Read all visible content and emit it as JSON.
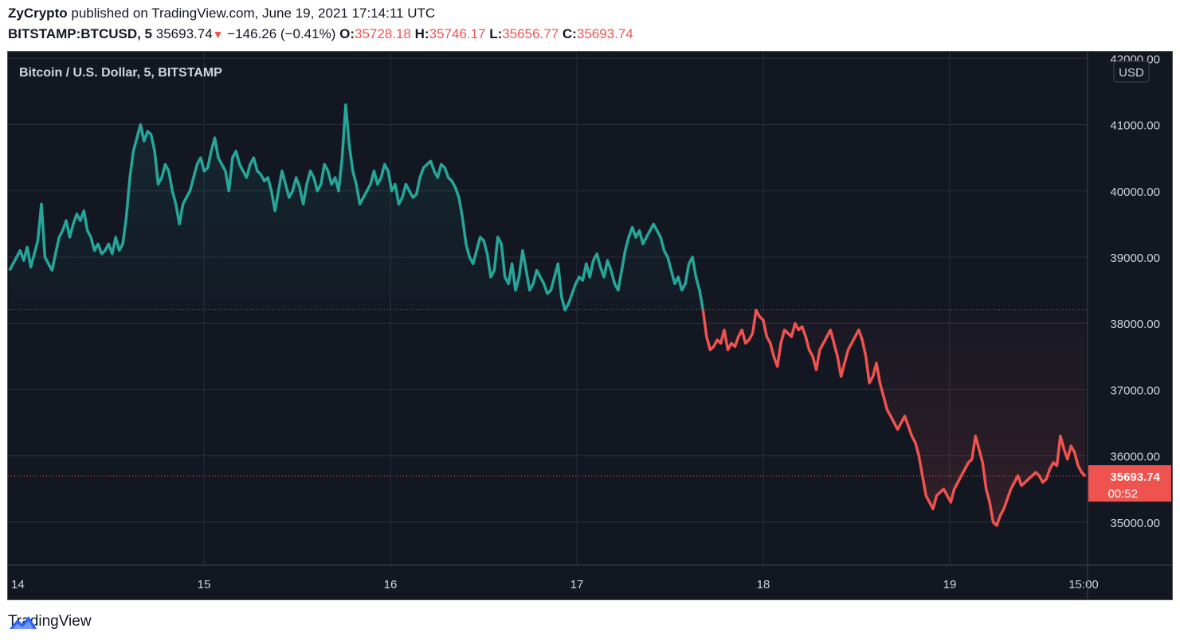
{
  "header": {
    "author": "ZyCrypto",
    "published_text": "published on TradingView.com, June 19, 2021 17:14:11 UTC",
    "symbol": "BITSTAMP:BTCUSD, 5",
    "last_price": "35693.74",
    "change": "−146.26 (−0.41%)",
    "open_label": "O:",
    "open": "35728.18",
    "high_label": "H:",
    "high": "35746.17",
    "low_label": "L:",
    "low": "35656.77",
    "close_label": "C:",
    "close": "35693.74"
  },
  "chart_data": {
    "type": "line",
    "title": "Bitcoin / U.S. Dollar, 5, BITSTAMP",
    "currency_label": "USD",
    "x_tick_labels": [
      "14",
      "15",
      "16",
      "17",
      "18",
      "19",
      "15:00"
    ],
    "y_tick_labels": [
      "42000.00",
      "41000.00",
      "40000.00",
      "39000.00",
      "38000.00",
      "37000.00",
      "36000.00",
      "35000.00"
    ],
    "ylim": [
      34350,
      42100
    ],
    "baseline": 38210,
    "last_price_label": "35693.74",
    "countdown_label": "00:52",
    "colors": {
      "up": "#26a69a",
      "down": "#ef5350",
      "background": "#131722",
      "grid": "#2a2e39"
    },
    "series": [
      {
        "values": [
          38800,
          38900,
          39000,
          39100,
          38950,
          39150,
          38850,
          39050,
          39250,
          39800,
          39000,
          38900,
          38800,
          39050,
          39300,
          39400,
          39550,
          39300,
          39500,
          39650,
          39550,
          39700,
          39400,
          39300,
          39100,
          39200,
          39050,
          39100,
          39200,
          39050,
          39300,
          39100,
          39200,
          39600,
          40200,
          40600,
          40800,
          41000,
          40750,
          40900,
          40850,
          40600,
          40100,
          40200,
          40400,
          40300,
          40000,
          39800,
          39500,
          39800,
          39900,
          40000,
          40200,
          40400,
          40500,
          40300,
          40350,
          40600,
          40800,
          40500,
          40400,
          40300,
          40000,
          40500,
          40600,
          40400,
          40300,
          40200,
          40400,
          40500,
          40300,
          40250,
          40150,
          40200,
          40000,
          39700,
          40000,
          40300,
          40100,
          39900,
          40000,
          40200,
          40050,
          39800,
          40100,
          40300,
          40200,
          40000,
          40100,
          40400,
          40300,
          40100,
          40200,
          40000,
          40500,
          41300,
          40700,
          40300,
          40100,
          39800,
          39900,
          40000,
          40100,
          40300,
          40100,
          40200,
          40400,
          40300,
          40000,
          40100,
          39800,
          39900,
          40100,
          40000,
          39900,
          39950,
          40200,
          40350,
          40400,
          40450,
          40300,
          40200,
          40400,
          40350,
          40200,
          40150,
          40050,
          39900,
          39600,
          39200,
          39000,
          38900,
          39100,
          39300,
          39250,
          39050,
          38700,
          38800,
          39300,
          39200,
          38700,
          38600,
          38900,
          38500,
          38700,
          39100,
          38800,
          38500,
          38600,
          38800,
          38700,
          38600,
          38450,
          38500,
          38700,
          38900,
          38400,
          38200,
          38300,
          38450,
          38600,
          38700,
          38650,
          38900,
          38700,
          38950,
          39050,
          38850,
          38700,
          38950,
          38800,
          38600,
          38500,
          38800,
          39100,
          39300,
          39450,
          39300,
          39400,
          39200,
          39300,
          39400,
          39500,
          39400,
          39300,
          39100,
          39000,
          38800,
          38600,
          38700,
          38500,
          38600,
          38900,
          39000,
          38700,
          38500,
          38200
        ]
      },
      {
        "values": [
          38200,
          37800,
          37600,
          37650,
          37750,
          37700,
          37900,
          37600,
          37700,
          37650,
          37800,
          37900,
          37700,
          37750,
          37850,
          38200,
          38100,
          38050,
          37800,
          37700,
          37500,
          37350,
          37700,
          37900,
          37850,
          37800,
          38000,
          37900,
          37950,
          37800,
          37600,
          37500,
          37300,
          37600,
          37700,
          37800,
          37900,
          37700,
          37500,
          37200,
          37400,
          37600,
          37700,
          37800,
          37900,
          37750,
          37500,
          37100,
          37200,
          37400,
          37100,
          36900,
          36700,
          36600,
          36500,
          36400,
          36500,
          36600,
          36450,
          36300,
          36200,
          36000,
          35700,
          35400,
          35300,
          35200,
          35400,
          35450,
          35500,
          35400,
          35300,
          35500,
          35600,
          35700,
          35800,
          35900,
          35950,
          36300,
          36100,
          35900,
          35500,
          35300,
          35000,
          34950,
          35100,
          35200,
          35350,
          35500,
          35600,
          35700,
          35550,
          35600,
          35650,
          35700,
          35750,
          35700,
          35600,
          35650,
          35800,
          35900,
          35850,
          36300,
          36100,
          35950,
          36150,
          36050,
          35850,
          35750,
          35694
        ]
      }
    ]
  }
}
